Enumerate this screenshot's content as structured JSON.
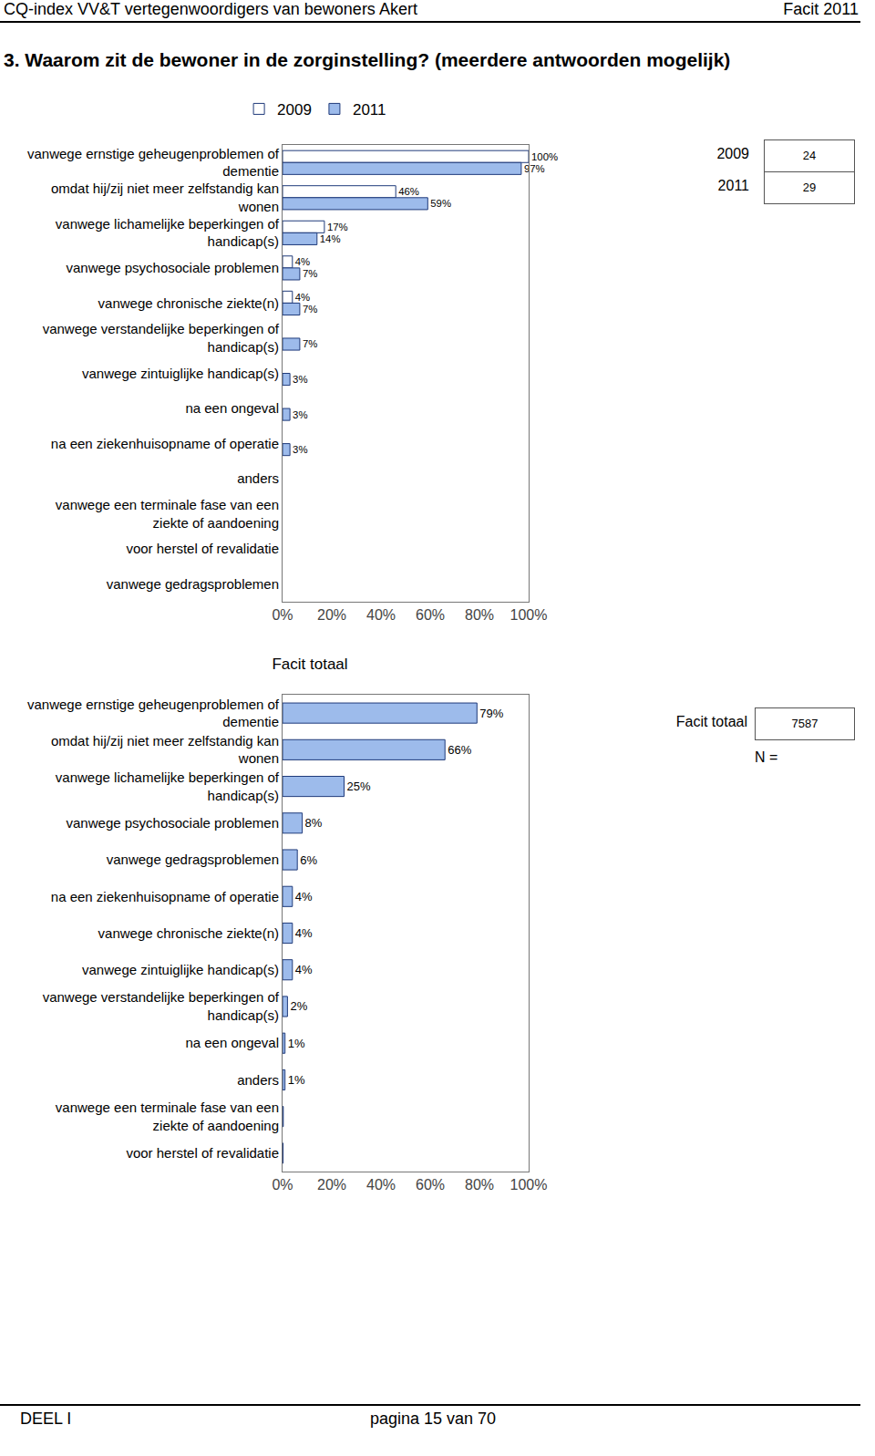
{
  "page": {
    "header_left": "CQ-index VV&T vertegenwoordigers van bewoners Akert",
    "header_right": "Facit 2011",
    "heading": "3. Waarom zit de bewoner in de zorginstelling? (meerdere antwoorden mogelijk)",
    "footer_left": "DEEL I",
    "footer_center": "pagina 15 van 70"
  },
  "chart_data": [
    {
      "type": "bar",
      "orientation": "horizontal",
      "data_labels": true,
      "legend": "top",
      "grid": false,
      "categories": [
        "vanwege ernstige geheugenproblemen of dementie",
        "omdat hij/zij niet meer zelfstandig kan wonen",
        "vanwege lichamelijke beperkingen of handicap(s)",
        "vanwege psychosociale problemen",
        "vanwege chronische ziekte(n)",
        "vanwege verstandelijke beperkingen of handicap(s)",
        "vanwege zintuiglijke handicap(s)",
        "na een ongeval",
        "na een ziekenhuisopname of operatie",
        "anders",
        "vanwege een terminale fase van een ziekte of aandoening",
        "voor herstel of revalidatie",
        "vanwege gedragsproblemen"
      ],
      "series": [
        {
          "name": "2009",
          "color": "#ffffff",
          "values": [
            100,
            46,
            17,
            4,
            4,
            null,
            null,
            null,
            null,
            null,
            null,
            null,
            null
          ],
          "value_labels": [
            "100%",
            "46%",
            "17%",
            "4%",
            "4%",
            null,
            null,
            null,
            null,
            null,
            null,
            null,
            null
          ]
        },
        {
          "name": "2011",
          "color": "#9dbbeb",
          "values": [
            97,
            59,
            14,
            7,
            7,
            7,
            3,
            3,
            3,
            null,
            null,
            null,
            null
          ],
          "value_labels": [
            "97%",
            "59%",
            "14%",
            "7%",
            "7%",
            "7%",
            "3%",
            "3%",
            "3%",
            null,
            null,
            null,
            null
          ]
        }
      ],
      "xlim": [
        0,
        100
      ],
      "xticks": [
        {
          "value": 0,
          "label": "0%"
        },
        {
          "value": 20,
          "label": "20%"
        },
        {
          "value": 40,
          "label": "40%"
        },
        {
          "value": 60,
          "label": "60%"
        },
        {
          "value": 80,
          "label": "80%"
        },
        {
          "value": 100,
          "label": "100%"
        }
      ],
      "n_table": [
        {
          "label": "2009",
          "value": 24
        },
        {
          "label": "2011",
          "value": 29
        }
      ]
    },
    {
      "type": "bar",
      "orientation": "horizontal",
      "data_labels": true,
      "grid": false,
      "title": "Facit totaal",
      "categories": [
        "vanwege ernstige geheugenproblemen of dementie",
        "omdat hij/zij niet meer zelfstandig kan wonen",
        "vanwege lichamelijke beperkingen of handicap(s)",
        "vanwege psychosociale problemen",
        "vanwege gedragsproblemen",
        "na een ziekenhuisopname of operatie",
        "vanwege chronische ziekte(n)",
        "vanwege zintuiglijke handicap(s)",
        "vanwege verstandelijke beperkingen of handicap(s)",
        "na een ongeval",
        "anders",
        "vanwege een terminale fase van een ziekte of aandoening",
        "voor herstel of revalidatie"
      ],
      "values": [
        79,
        66,
        25,
        8,
        6,
        4,
        4,
        4,
        2,
        1,
        1,
        0.3,
        0.2
      ],
      "value_labels": [
        "79%",
        "66%",
        "25%",
        "8%",
        "6%",
        "4%",
        "4%",
        "4%",
        "2%",
        "1%",
        "1%",
        null,
        null
      ],
      "color": "#9dbbeb",
      "xlim": [
        0,
        100
      ],
      "xticks": [
        {
          "value": 0,
          "label": "0%"
        },
        {
          "value": 20,
          "label": "20%"
        },
        {
          "value": 40,
          "label": "40%"
        },
        {
          "value": 60,
          "label": "60%"
        },
        {
          "value": 80,
          "label": "80%"
        },
        {
          "value": 100,
          "label": "100%"
        }
      ],
      "n_table": [
        {
          "label": "Facit totaal",
          "value": 7587
        }
      ],
      "n_label": "N ="
    }
  ]
}
